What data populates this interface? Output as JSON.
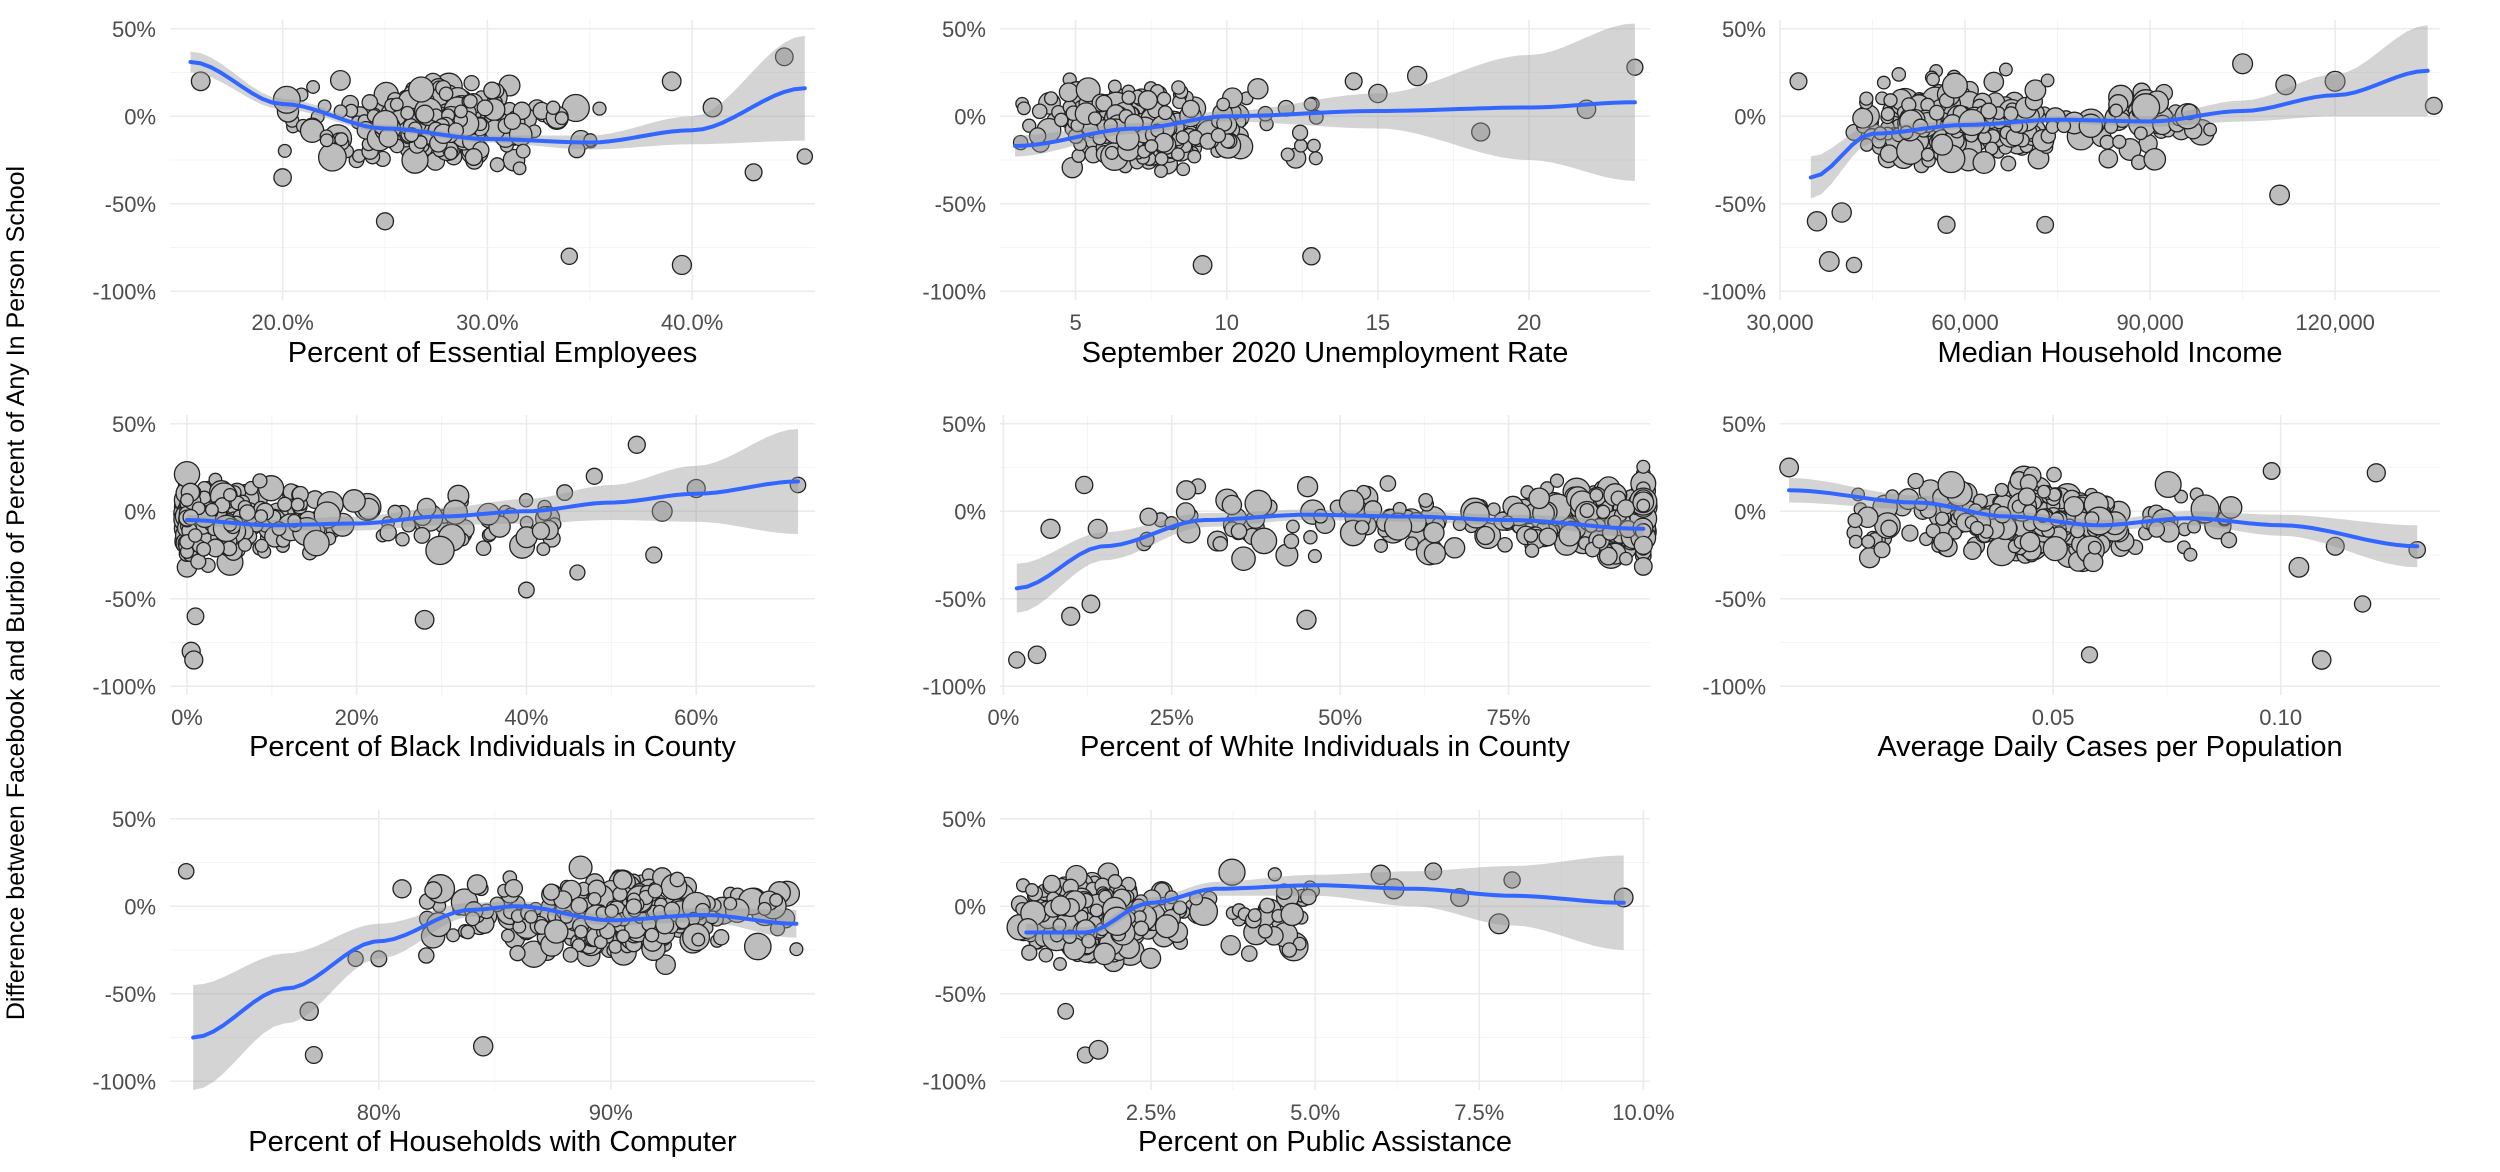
{
  "figure": {
    "ylabel": "Difference between Facebook and Burbio of Percent of Any In Person School",
    "y_ticks": [
      "50%",
      "0%",
      "-50%",
      "-100%"
    ],
    "y_tick_values": [
      0.5,
      0,
      -0.5,
      -1.0
    ]
  },
  "chart_data": [
    {
      "type": "scatter",
      "xlabel": "Percent of Essential Employees",
      "xlim": [
        0.145,
        0.46
      ],
      "ylim": [
        -1.05,
        0.55
      ],
      "x_ticks": [
        0.2,
        0.3,
        0.4
      ],
      "x_tick_labels": [
        "20.0%",
        "30.0%",
        "40.0%"
      ],
      "cloud": {
        "n": 300,
        "x_range": [
          0.2,
          0.36
        ],
        "x_center": 0.275,
        "y_center": -0.05,
        "y_spread": 0.5,
        "seed": 1
      },
      "outliers": [
        [
          0.16,
          0.2
        ],
        [
          0.2,
          -0.35
        ],
        [
          0.25,
          -0.6
        ],
        [
          0.34,
          -0.8
        ],
        [
          0.395,
          -0.85
        ],
        [
          0.43,
          -0.32
        ],
        [
          0.445,
          0.34
        ],
        [
          0.455,
          -0.23
        ],
        [
          0.41,
          0.05
        ],
        [
          0.39,
          0.2
        ]
      ],
      "smooth_x": [
        0.155,
        0.2,
        0.25,
        0.3,
        0.35,
        0.4,
        0.455
      ],
      "smooth_y": [
        0.31,
        0.07,
        -0.07,
        -0.13,
        -0.15,
        -0.08,
        0.16
      ],
      "band_halfwidth": [
        0.06,
        0.03,
        0.02,
        0.02,
        0.04,
        0.08,
        0.3
      ]
    },
    {
      "type": "scatter",
      "xlabel": "September 2020 Unemployment Rate",
      "xlim": [
        2.5,
        24.0
      ],
      "ylim": [
        -1.05,
        0.55
      ],
      "x_ticks": [
        5,
        10,
        15,
        20
      ],
      "x_tick_labels": [
        "5",
        "10",
        "15",
        "20"
      ],
      "cloud": {
        "n": 300,
        "x_range": [
          3,
          13
        ],
        "x_center": 7,
        "y_center": -0.05,
        "y_spread": 0.5,
        "seed": 2
      },
      "outliers": [
        [
          12.8,
          -0.8
        ],
        [
          9.2,
          -0.85
        ],
        [
          15,
          0.13
        ],
        [
          16.3,
          0.23
        ],
        [
          18.4,
          -0.09
        ],
        [
          21.9,
          0.04
        ],
        [
          23.5,
          0.28
        ],
        [
          14.2,
          0.2
        ]
      ],
      "smooth_x": [
        3,
        7,
        10,
        15,
        20,
        23.5
      ],
      "smooth_y": [
        -0.17,
        -0.07,
        0.0,
        0.03,
        0.05,
        0.08
      ],
      "band_halfwidth": [
        0.06,
        0.03,
        0.03,
        0.1,
        0.3,
        0.45
      ]
    },
    {
      "type": "scatter",
      "xlabel": "Median Household Income",
      "xlim": [
        30000,
        137000
      ],
      "ylim": [
        -1.05,
        0.55
      ],
      "x_ticks": [
        30000,
        60000,
        90000,
        120000
      ],
      "x_tick_labels": [
        "30,000",
        "60,000",
        "90,000",
        "120,000"
      ],
      "cloud": {
        "n": 300,
        "x_range": [
          42000,
          100000
        ],
        "x_center": 60000,
        "y_center": -0.05,
        "y_spread": 0.5,
        "seed": 3
      },
      "outliers": [
        [
          33000,
          0.2
        ],
        [
          36000,
          -0.6
        ],
        [
          38000,
          -0.83
        ],
        [
          40000,
          -0.55
        ],
        [
          42000,
          -0.85
        ],
        [
          57000,
          -0.62
        ],
        [
          73000,
          -0.62
        ],
        [
          105000,
          0.3
        ],
        [
          112000,
          0.18
        ],
        [
          120000,
          0.2
        ],
        [
          136000,
          0.06
        ],
        [
          111000,
          -0.45
        ]
      ],
      "smooth_x": [
        35000,
        45000,
        60000,
        75000,
        90000,
        105000,
        120000,
        135000
      ],
      "smooth_y": [
        -0.35,
        -0.1,
        -0.05,
        -0.02,
        -0.03,
        0.03,
        0.12,
        0.26
      ],
      "band_halfwidth": [
        0.12,
        0.05,
        0.02,
        0.02,
        0.03,
        0.06,
        0.12,
        0.26
      ]
    },
    {
      "type": "scatter",
      "xlabel": "Percent of Black Individuals in County",
      "xlim": [
        -0.02,
        0.74
      ],
      "ylim": [
        -1.05,
        0.55
      ],
      "x_ticks": [
        0,
        0.2,
        0.4,
        0.6
      ],
      "x_tick_labels": [
        "0%",
        "20%",
        "40%",
        "60%"
      ],
      "cloud": {
        "n": 350,
        "x_range": [
          0,
          0.45
        ],
        "x_center": 0.03,
        "y_center": -0.05,
        "y_spread": 0.5,
        "seed": 4
      },
      "outliers": [
        [
          0.005,
          -0.8
        ],
        [
          0.008,
          -0.85
        ],
        [
          0.01,
          -0.6
        ],
        [
          0.28,
          -0.62
        ],
        [
          0.4,
          -0.45
        ],
        [
          0.46,
          -0.35
        ],
        [
          0.53,
          0.38
        ],
        [
          0.55,
          -0.25
        ],
        [
          0.6,
          0.13
        ],
        [
          0.72,
          0.15
        ],
        [
          0.48,
          0.2
        ],
        [
          0.56,
          0.0
        ]
      ],
      "smooth_x": [
        0.0,
        0.1,
        0.2,
        0.3,
        0.4,
        0.5,
        0.6,
        0.72
      ],
      "smooth_y": [
        -0.05,
        -0.08,
        -0.07,
        -0.03,
        0.0,
        0.05,
        0.1,
        0.17
      ],
      "band_halfwidth": [
        0.03,
        0.03,
        0.04,
        0.05,
        0.07,
        0.1,
        0.16,
        0.3
      ]
    },
    {
      "type": "scatter",
      "xlabel": "Percent of White Individuals in County",
      "xlim": [
        -0.005,
        0.96
      ],
      "ylim": [
        -1.05,
        0.55
      ],
      "x_ticks": [
        0,
        0.25,
        0.5,
        0.75
      ],
      "x_tick_labels": [
        "0%",
        "25%",
        "50%",
        "75%"
      ],
      "cloud": {
        "n": 380,
        "x_range": [
          0.2,
          0.95
        ],
        "x_center": 0.9,
        "y_center": -0.05,
        "y_spread": 0.5,
        "seed": 5
      },
      "outliers": [
        [
          0.02,
          -0.85
        ],
        [
          0.05,
          -0.82
        ],
        [
          0.1,
          -0.6
        ],
        [
          0.13,
          -0.53
        ],
        [
          0.07,
          -0.1
        ],
        [
          0.12,
          0.15
        ],
        [
          0.14,
          -0.1
        ],
        [
          0.45,
          -0.62
        ]
      ],
      "smooth_x": [
        0.02,
        0.15,
        0.3,
        0.45,
        0.6,
        0.75,
        0.95
      ],
      "smooth_y": [
        -0.44,
        -0.2,
        -0.05,
        -0.02,
        -0.03,
        -0.05,
        -0.1
      ],
      "band_halfwidth": [
        0.14,
        0.08,
        0.04,
        0.03,
        0.03,
        0.03,
        0.05
      ]
    },
    {
      "type": "scatter",
      "xlabel": "Average Daily Cases per Population",
      "xlim": [
        -0.01,
        0.135
      ],
      "ylim": [
        -1.05,
        0.55
      ],
      "x_ticks": [
        0.05,
        0.1
      ],
      "x_tick_labels": [
        "0.05",
        "0.10"
      ],
      "cloud": {
        "n": 350,
        "x_range": [
          0.005,
          0.09
        ],
        "x_center": 0.045,
        "y_center": -0.05,
        "y_spread": 0.5,
        "seed": 6
      },
      "outliers": [
        [
          -0.008,
          0.25
        ],
        [
          0.058,
          -0.82
        ],
        [
          0.109,
          -0.85
        ],
        [
          0.104,
          -0.32
        ],
        [
          0.112,
          -0.2
        ],
        [
          0.121,
          0.22
        ],
        [
          0.118,
          -0.53
        ],
        [
          0.13,
          -0.22
        ],
        [
          0.098,
          0.23
        ]
      ],
      "smooth_x": [
        -0.008,
        0.02,
        0.04,
        0.06,
        0.08,
        0.1,
        0.13
      ],
      "smooth_y": [
        0.12,
        0.05,
        -0.03,
        -0.08,
        -0.04,
        -0.08,
        -0.2
      ],
      "band_halfwidth": [
        0.07,
        0.04,
        0.03,
        0.03,
        0.04,
        0.06,
        0.12
      ]
    },
    {
      "type": "scatter",
      "xlabel": "Percent of Households with Computer",
      "xlim": [
        0.71,
        0.988
      ],
      "ylim": [
        -1.05,
        0.55
      ],
      "x_ticks": [
        0.8,
        0.9
      ],
      "x_tick_labels": [
        "80%",
        "90%"
      ],
      "cloud": {
        "n": 350,
        "x_range": [
          0.82,
          0.98
        ],
        "x_center": 0.9,
        "y_center": -0.05,
        "y_spread": 0.5,
        "seed": 7
      },
      "outliers": [
        [
          0.717,
          0.2
        ],
        [
          0.77,
          -0.6
        ],
        [
          0.772,
          -0.85
        ],
        [
          0.79,
          -0.3
        ],
        [
          0.8,
          -0.3
        ],
        [
          0.845,
          -0.8
        ],
        [
          0.81,
          0.1
        ]
      ],
      "smooth_x": [
        0.72,
        0.76,
        0.8,
        0.84,
        0.86,
        0.9,
        0.94,
        0.98
      ],
      "smooth_y": [
        -0.75,
        -0.47,
        -0.2,
        -0.02,
        0.0,
        -0.08,
        -0.05,
        -0.1
      ],
      "band_halfwidth": [
        0.3,
        0.2,
        0.1,
        0.04,
        0.03,
        0.03,
        0.04,
        0.08
      ]
    },
    {
      "type": "scatter",
      "xlabel": "Percent on Public Assistance",
      "xlim": [
        0.002,
        0.101
      ],
      "ylim": [
        -1.05,
        0.55
      ],
      "x_ticks": [
        0.025,
        0.05,
        0.075,
        0.1
      ],
      "x_tick_labels": [
        "2.5%",
        "5.0%",
        "7.5%",
        "10.0%"
      ],
      "cloud": {
        "n": 350,
        "x_range": [
          0.005,
          0.05
        ],
        "x_center": 0.015,
        "y_center": -0.05,
        "y_spread": 0.5,
        "seed": 8
      },
      "outliers": [
        [
          0.015,
          -0.85
        ],
        [
          0.017,
          -0.82
        ],
        [
          0.012,
          -0.6
        ],
        [
          0.06,
          0.18
        ],
        [
          0.062,
          0.1
        ],
        [
          0.068,
          0.2
        ],
        [
          0.072,
          0.05
        ],
        [
          0.078,
          -0.1
        ],
        [
          0.08,
          0.15
        ],
        [
          0.097,
          0.05
        ]
      ],
      "smooth_x": [
        0.006,
        0.015,
        0.025,
        0.035,
        0.05,
        0.065,
        0.08,
        0.097
      ],
      "smooth_y": [
        -0.15,
        -0.15,
        0.02,
        0.1,
        0.12,
        0.1,
        0.06,
        0.02
      ],
      "band_halfwidth": [
        0.05,
        0.03,
        0.03,
        0.04,
        0.06,
        0.1,
        0.17,
        0.27
      ]
    }
  ]
}
